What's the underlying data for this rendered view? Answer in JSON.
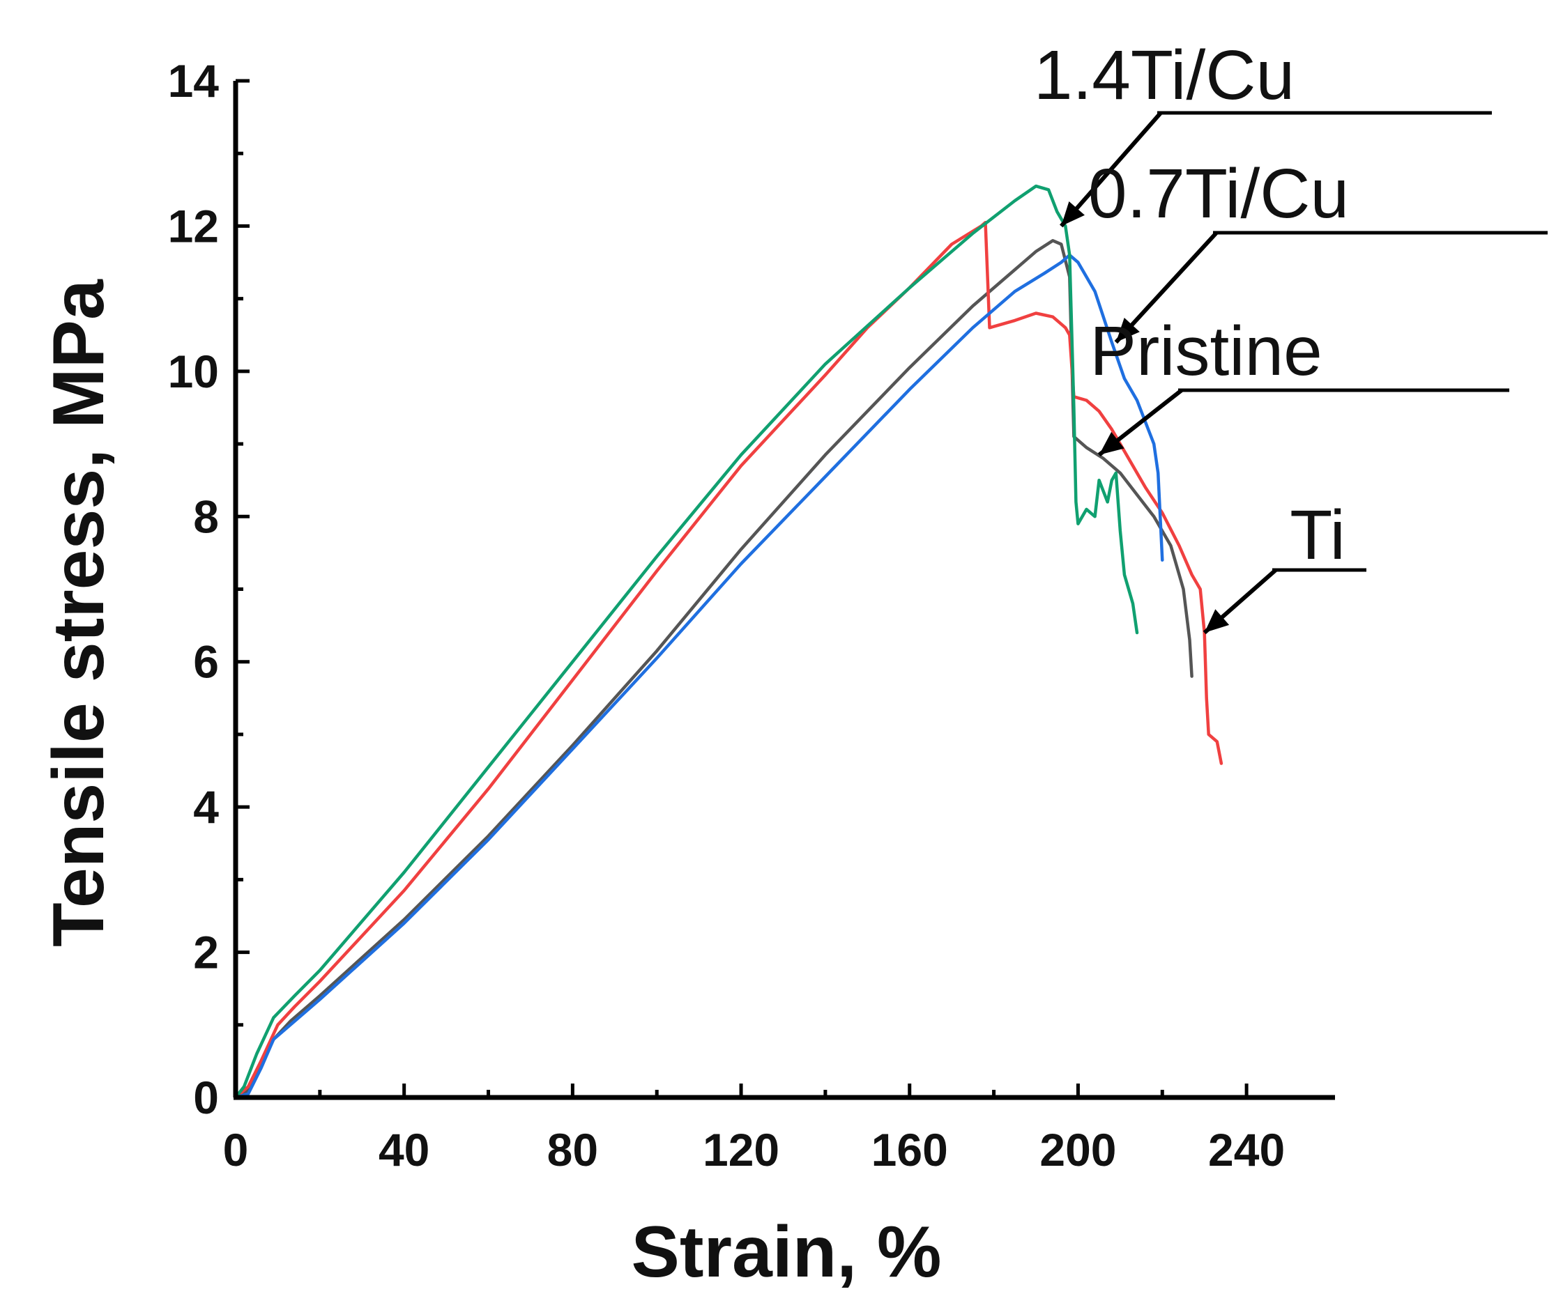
{
  "chart_data": {
    "type": "line",
    "title": "",
    "xlabel": "Strain, %",
    "ylabel": "Tensile stress, MPa",
    "xlim": [
      0,
      260
    ],
    "ylim": [
      0,
      14
    ],
    "x_ticks": [
      0,
      40,
      80,
      120,
      160,
      200,
      240
    ],
    "y_ticks": [
      0,
      2,
      4,
      6,
      8,
      10,
      12,
      14
    ],
    "grid": false,
    "legend": "none",
    "series": [
      {
        "name": "Pristine",
        "color": "#555555",
        "points": [
          [
            0,
            0
          ],
          [
            3,
            0.1
          ],
          [
            6,
            0.45
          ],
          [
            9,
            0.8
          ],
          [
            13,
            1.05
          ],
          [
            20,
            1.4
          ],
          [
            40,
            2.45
          ],
          [
            60,
            3.6
          ],
          [
            80,
            4.85
          ],
          [
            100,
            6.15
          ],
          [
            120,
            7.55
          ],
          [
            140,
            8.85
          ],
          [
            160,
            10.05
          ],
          [
            175,
            10.9
          ],
          [
            185,
            11.4
          ],
          [
            190,
            11.65
          ],
          [
            194,
            11.8
          ],
          [
            196,
            11.75
          ],
          [
            198,
            11.3
          ],
          [
            199,
            9.1
          ],
          [
            202,
            8.95
          ],
          [
            206,
            8.8
          ],
          [
            210,
            8.6
          ],
          [
            214,
            8.3
          ],
          [
            218,
            8.0
          ],
          [
            222,
            7.6
          ],
          [
            225,
            7.0
          ],
          [
            226.5,
            6.3
          ],
          [
            227,
            5.8
          ]
        ]
      },
      {
        "name": "Ti",
        "color": "#f04040",
        "points": [
          [
            0,
            0
          ],
          [
            3,
            0.15
          ],
          [
            6,
            0.5
          ],
          [
            10,
            1.0
          ],
          [
            14,
            1.25
          ],
          [
            20,
            1.6
          ],
          [
            40,
            2.85
          ],
          [
            60,
            4.25
          ],
          [
            80,
            5.75
          ],
          [
            100,
            7.25
          ],
          [
            120,
            8.7
          ],
          [
            140,
            9.95
          ],
          [
            150,
            10.6
          ],
          [
            160,
            11.15
          ],
          [
            170,
            11.75
          ],
          [
            177,
            12.0
          ],
          [
            178,
            12.05
          ],
          [
            179,
            10.6
          ],
          [
            185,
            10.7
          ],
          [
            190,
            10.8
          ],
          [
            194,
            10.75
          ],
          [
            197,
            10.6
          ],
          [
            198,
            10.5
          ],
          [
            199,
            9.65
          ],
          [
            202,
            9.6
          ],
          [
            205,
            9.45
          ],
          [
            208,
            9.2
          ],
          [
            212,
            8.8
          ],
          [
            216,
            8.4
          ],
          [
            220,
            8.05
          ],
          [
            224,
            7.6
          ],
          [
            227,
            7.2
          ],
          [
            229,
            7.0
          ],
          [
            230,
            6.4
          ],
          [
            230.5,
            5.5
          ],
          [
            231,
            5.0
          ],
          [
            233,
            4.9
          ],
          [
            234,
            4.6
          ]
        ]
      },
      {
        "name": "0.7Ti/Cu",
        "color": "#1f6fe0",
        "points": [
          [
            0,
            0
          ],
          [
            3,
            0.05
          ],
          [
            6,
            0.4
          ],
          [
            9,
            0.8
          ],
          [
            13,
            1.0
          ],
          [
            20,
            1.35
          ],
          [
            40,
            2.4
          ],
          [
            60,
            3.55
          ],
          [
            80,
            4.8
          ],
          [
            100,
            6.05
          ],
          [
            120,
            7.35
          ],
          [
            140,
            8.55
          ],
          [
            160,
            9.75
          ],
          [
            175,
            10.6
          ],
          [
            185,
            11.1
          ],
          [
            192,
            11.35
          ],
          [
            196,
            11.5
          ],
          [
            198,
            11.6
          ],
          [
            200,
            11.5
          ],
          [
            204,
            11.1
          ],
          [
            208,
            10.4
          ],
          [
            211,
            9.9
          ],
          [
            214,
            9.6
          ],
          [
            216,
            9.3
          ],
          [
            218,
            9.0
          ],
          [
            219,
            8.6
          ],
          [
            220,
            7.4
          ]
        ]
      },
      {
        "name": "1.4Ti/Cu",
        "color": "#10a070",
        "points": [
          [
            0,
            0
          ],
          [
            2,
            0.15
          ],
          [
            5,
            0.6
          ],
          [
            9,
            1.1
          ],
          [
            14,
            1.4
          ],
          [
            20,
            1.75
          ],
          [
            40,
            3.1
          ],
          [
            60,
            4.55
          ],
          [
            80,
            6.0
          ],
          [
            100,
            7.45
          ],
          [
            120,
            8.85
          ],
          [
            140,
            10.1
          ],
          [
            160,
            11.15
          ],
          [
            175,
            11.9
          ],
          [
            185,
            12.35
          ],
          [
            190,
            12.55
          ],
          [
            193,
            12.5
          ],
          [
            195,
            12.2
          ],
          [
            197,
            12.0
          ],
          [
            198,
            11.6
          ],
          [
            199,
            9.5
          ],
          [
            199.5,
            8.2
          ],
          [
            200,
            7.9
          ],
          [
            202,
            8.1
          ],
          [
            204,
            8.0
          ],
          [
            205,
            8.5
          ],
          [
            207,
            8.2
          ],
          [
            208,
            8.5
          ],
          [
            209,
            8.6
          ],
          [
            210,
            7.8
          ],
          [
            211,
            7.2
          ],
          [
            213,
            6.8
          ],
          [
            214,
            6.4
          ]
        ]
      }
    ],
    "annotations": [
      {
        "label": "1.4Ti/Cu",
        "series": "1.4Ti/Cu",
        "target": [
          196,
          12.0
        ]
      },
      {
        "label": "0.7Ti/Cu",
        "series": "0.7Ti/Cu",
        "target": [
          209,
          10.4
        ]
      },
      {
        "label": "Pristine",
        "series": "Pristine",
        "target": [
          205,
          8.85
        ]
      },
      {
        "label": "Ti",
        "series": "Ti",
        "target": [
          230,
          6.4
        ]
      }
    ]
  }
}
